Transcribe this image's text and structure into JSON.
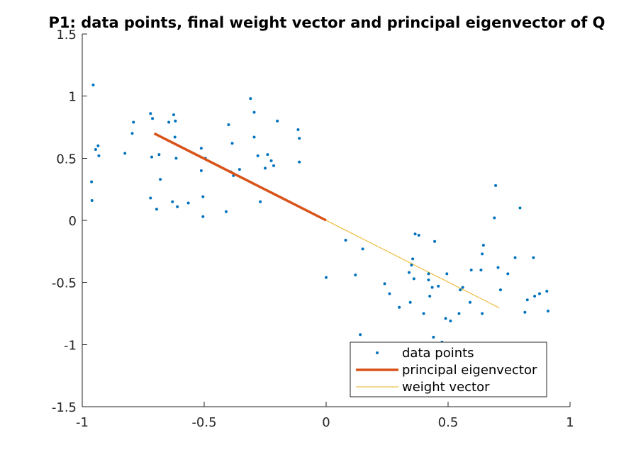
{
  "chart_data": {
    "type": "scatter",
    "title": "P1: data points, final weight vector and principal eigenvector of Q",
    "xlabel": "",
    "ylabel": "",
    "xlim": [
      -1,
      1
    ],
    "ylim": [
      -1.5,
      1.5
    ],
    "xticks": [
      -1,
      -0.5,
      0,
      0.5,
      1
    ],
    "yticks": [
      -1.5,
      -1,
      -0.5,
      0,
      0.5,
      1,
      1.5
    ],
    "xtick_labels": [
      "-1",
      "-0.5",
      "0",
      "0.5",
      "1"
    ],
    "ytick_labels": [
      "-1.5",
      "-1",
      "-0.5",
      "0",
      "0.5",
      "1",
      "1.5"
    ],
    "grid": false,
    "legend_position": "bottom-right",
    "legend": [
      "data points",
      "principal eigenvector",
      "weight vector"
    ],
    "colors": {
      "data_points": "#0072bd",
      "principal_eigenvector": "#d95319",
      "weight_vector": "#edb120",
      "axes": "#262626"
    },
    "series": [
      {
        "name": "data points",
        "kind": "points",
        "points": [
          [
            -0.955,
            1.09
          ],
          [
            -0.945,
            0.57
          ],
          [
            -0.935,
            0.6
          ],
          [
            -0.932,
            0.52
          ],
          [
            -0.962,
            0.31
          ],
          [
            -0.96,
            0.16
          ],
          [
            -0.825,
            0.54
          ],
          [
            -0.79,
            0.79
          ],
          [
            -0.795,
            0.7
          ],
          [
            -0.72,
            0.86
          ],
          [
            -0.712,
            0.82
          ],
          [
            -0.715,
            0.51
          ],
          [
            -0.685,
            0.53
          ],
          [
            -0.68,
            0.33
          ],
          [
            -0.72,
            0.18
          ],
          [
            -0.695,
            0.09
          ],
          [
            -0.645,
            0.79
          ],
          [
            -0.625,
            0.85
          ],
          [
            -0.618,
            0.8
          ],
          [
            -0.62,
            0.67
          ],
          [
            -0.615,
            0.5
          ],
          [
            -0.63,
            0.15
          ],
          [
            -0.61,
            0.11
          ],
          [
            -0.565,
            0.14
          ],
          [
            -0.512,
            0.58
          ],
          [
            -0.512,
            0.4
          ],
          [
            -0.505,
            0.19
          ],
          [
            -0.505,
            0.03
          ],
          [
            -0.495,
            0.5
          ],
          [
            -0.4,
            0.77
          ],
          [
            -0.385,
            0.62
          ],
          [
            -0.38,
            0.36
          ],
          [
            -0.39,
            0.39
          ],
          [
            -0.41,
            0.07
          ],
          [
            -0.355,
            0.41
          ],
          [
            -0.31,
            0.98
          ],
          [
            -0.295,
            0.87
          ],
          [
            -0.295,
            0.67
          ],
          [
            -0.28,
            0.52
          ],
          [
            -0.24,
            0.53
          ],
          [
            -0.25,
            0.42
          ],
          [
            -0.225,
            0.48
          ],
          [
            -0.215,
            0.44
          ],
          [
            -0.2,
            0.8
          ],
          [
            -0.27,
            0.15
          ],
          [
            -0.115,
            0.73
          ],
          [
            -0.11,
            0.66
          ],
          [
            -0.11,
            0.47
          ],
          [
            0.0,
            -0.46
          ],
          [
            0.08,
            -0.16
          ],
          [
            0.12,
            -0.44
          ],
          [
            0.14,
            -0.92
          ],
          [
            0.15,
            -0.23
          ],
          [
            0.24,
            -0.51
          ],
          [
            0.26,
            -0.59
          ],
          [
            0.3,
            -0.7
          ],
          [
            0.34,
            -0.42
          ],
          [
            0.35,
            -0.36
          ],
          [
            0.355,
            -0.31
          ],
          [
            0.36,
            -0.47
          ],
          [
            0.345,
            -0.66
          ],
          [
            0.365,
            -0.11
          ],
          [
            0.38,
            -0.12
          ],
          [
            0.4,
            -0.75
          ],
          [
            0.42,
            -0.43
          ],
          [
            0.425,
            -0.61
          ],
          [
            0.42,
            -0.48
          ],
          [
            0.435,
            -0.54
          ],
          [
            0.445,
            -0.17
          ],
          [
            0.44,
            -0.94
          ],
          [
            0.46,
            -0.53
          ],
          [
            0.475,
            -0.98
          ],
          [
            0.49,
            -0.79
          ],
          [
            0.495,
            -0.43
          ],
          [
            0.51,
            -0.81
          ],
          [
            0.545,
            -0.75
          ],
          [
            0.55,
            -0.56
          ],
          [
            0.56,
            -0.54
          ],
          [
            0.59,
            -0.66
          ],
          [
            0.595,
            -0.4
          ],
          [
            0.635,
            -0.4
          ],
          [
            0.64,
            -0.27
          ],
          [
            0.64,
            -0.75
          ],
          [
            0.645,
            -0.2
          ],
          [
            0.69,
            0.02
          ],
          [
            0.695,
            0.28
          ],
          [
            0.705,
            -0.38
          ],
          [
            0.715,
            -0.56
          ],
          [
            0.745,
            -0.43
          ],
          [
            0.775,
            -0.3
          ],
          [
            0.795,
            0.1
          ],
          [
            0.815,
            -0.74
          ],
          [
            0.825,
            -0.64
          ],
          [
            0.85,
            -0.3
          ],
          [
            0.855,
            -0.61
          ],
          [
            0.875,
            -0.59
          ],
          [
            0.905,
            -0.57
          ],
          [
            0.91,
            -0.73
          ]
        ]
      },
      {
        "name": "principal eigenvector",
        "kind": "line",
        "x": [
          -0.705,
          0
        ],
        "y": [
          0.7,
          0
        ]
      },
      {
        "name": "weight vector",
        "kind": "line",
        "x": [
          0,
          0.71
        ],
        "y": [
          0,
          -0.705
        ]
      }
    ]
  }
}
